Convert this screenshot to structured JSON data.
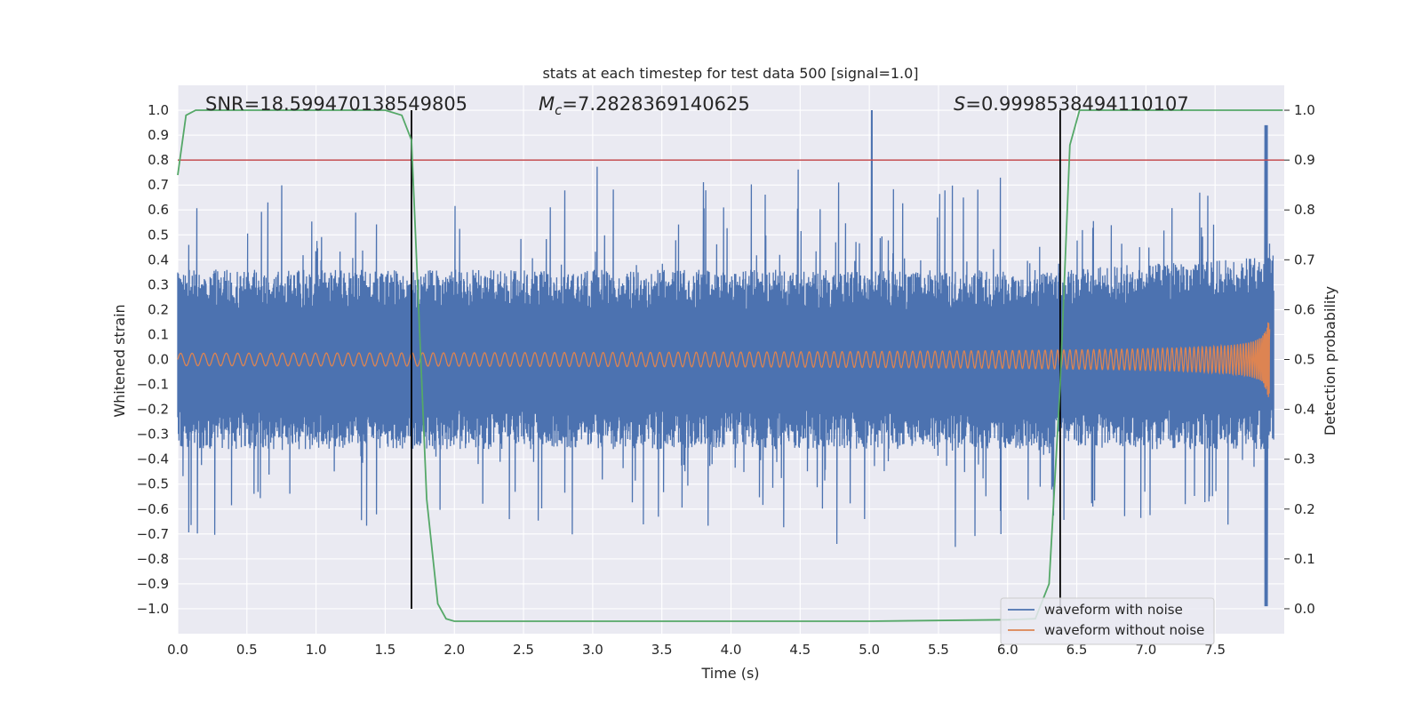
{
  "chart_data": {
    "type": "line",
    "title": "stats at each timestep for test data 500 [signal=1.0]",
    "xlabel": "Time (s)",
    "ylabel_left": "Whitened strain",
    "ylabel_right": "Detection probability",
    "xlim": [
      0.0,
      8.0
    ],
    "ylim_left": [
      -1.1,
      1.1
    ],
    "ylim_right": [
      -0.05,
      1.05
    ],
    "grid": true,
    "x_ticks": [
      "0.0",
      "0.5",
      "1.0",
      "1.5",
      "2.0",
      "2.5",
      "3.0",
      "3.5",
      "4.0",
      "4.5",
      "5.0",
      "5.5",
      "6.0",
      "6.5",
      "7.0",
      "7.5"
    ],
    "y_left_ticks": [
      "1.0",
      "0.9",
      "0.8",
      "0.7",
      "0.6",
      "0.5",
      "0.4",
      "0.3",
      "0.2",
      "0.1",
      "0.0",
      "−0.1",
      "−0.2",
      "−0.3",
      "−0.4",
      "−0.5",
      "−0.6",
      "−0.7",
      "−0.8",
      "−0.9",
      "−1.0"
    ],
    "y_right_ticks": [
      "1.0",
      "0.9",
      "0.8",
      "0.7",
      "0.6",
      "0.5",
      "0.4",
      "0.3",
      "0.2",
      "0.1",
      "0.0"
    ],
    "annotations": {
      "snr": "SNR=18.599470138549805",
      "mc_symbol": "M",
      "mc_sub": "c",
      "mc_value": "=7.2828369140625",
      "s_symbol": "S",
      "s_value": "=0.9998538494110107"
    },
    "threshold": {
      "axis": "right",
      "value": 0.9,
      "color": "#c44e52"
    },
    "vertical_lines": [
      {
        "x": 1.69,
        "y_range": [
          -1.0,
          1.0
        ],
        "color": "#000000"
      },
      {
        "x": 6.38,
        "y_range": [
          -1.0,
          1.0
        ],
        "color": "#000000"
      }
    ],
    "series": [
      {
        "name": "waveform with noise",
        "axis": "left",
        "color": "#4c72b0",
        "description_points": {
          "x_range": [
            0.0,
            8.0
          ],
          "base_amplitude": 0.2,
          "peak_max": 1.0,
          "peak_min": -0.99,
          "merger_x": 7.87
        }
      },
      {
        "name": "waveform without noise",
        "axis": "left",
        "color": "#dd8452",
        "description_points": {
          "x_range": [
            0.0,
            7.9
          ],
          "start_amplitude": 0.025,
          "peak_max": 0.57,
          "peak_min": -0.68,
          "merger_x": 7.87
        }
      },
      {
        "name": "detection probability",
        "axis": "right",
        "color": "#55a868",
        "x": [
          0.0,
          0.06,
          0.13,
          0.3,
          0.8,
          1.2,
          1.5,
          1.62,
          1.69,
          1.75,
          1.8,
          1.88,
          1.94,
          2.0,
          3.0,
          4.0,
          5.0,
          6.0,
          6.2,
          6.3,
          6.38,
          6.45,
          6.52,
          6.6,
          7.0,
          7.5,
          7.99
        ],
        "y": [
          0.87,
          0.99,
          1.0,
          1.0,
          1.0,
          1.0,
          1.0,
          0.99,
          0.94,
          0.55,
          0.22,
          0.01,
          -0.02,
          -0.025,
          -0.025,
          -0.025,
          -0.025,
          -0.022,
          -0.02,
          0.05,
          0.45,
          0.93,
          1.0,
          1.0,
          1.0,
          1.0,
          1.0
        ]
      }
    ],
    "legend": {
      "position": "lower-right",
      "entries": [
        "waveform with noise",
        "waveform without noise"
      ]
    }
  }
}
